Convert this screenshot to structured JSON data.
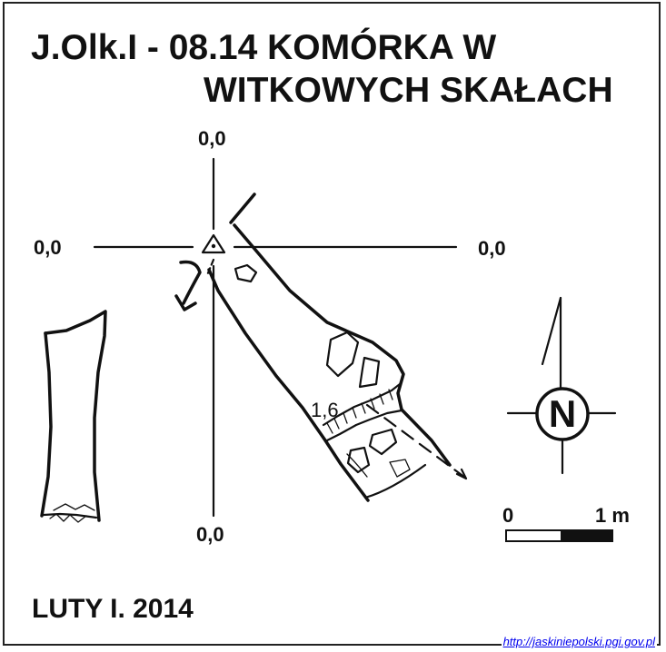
{
  "title": {
    "line1": "J.Olk.I - 08.14  KOMÓRKA W",
    "line2": "WITKOWYCH SKAŁACH"
  },
  "coordinates": {
    "top": "0,0",
    "left": "0,0",
    "right": "0,0",
    "bottom": "0,0"
  },
  "depth_label": "1,6",
  "north_label": "N",
  "scale": {
    "start": "0",
    "end": "1 m"
  },
  "date": "LUTY I. 2014",
  "source": "http://jaskiniepolski.pgi.gov.pl"
}
